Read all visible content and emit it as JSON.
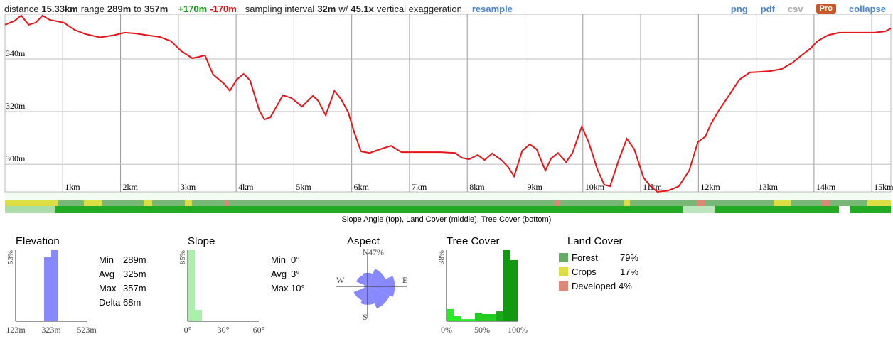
{
  "toolbar": {
    "items": [
      "distance",
      "15.33km",
      "range",
      "289m",
      "to",
      "357m",
      "+170m",
      "-170m",
      "sampling interval",
      "32m",
      "w/",
      "45.1x",
      "vertical exaggeration",
      "resample"
    ],
    "actions": [
      "png",
      "pdf",
      "csv",
      "Pro",
      "collapse"
    ]
  },
  "chart_data": [
    {
      "type": "line",
      "x": [
        0,
        0.16,
        0.28,
        0.41,
        0.53,
        0.65,
        0.77,
        1.02,
        1.2,
        1.39,
        1.64,
        1.88,
        2.07,
        2.25,
        2.5,
        2.68,
        2.87,
        3.05,
        3.24,
        3.36,
        3.46,
        3.6,
        3.79,
        3.89,
        4.01,
        4.13,
        4.24,
        4.4,
        4.49,
        4.59,
        4.81,
        4.96,
        5.14,
        5.33,
        5.42,
        5.55,
        5.7,
        5.82,
        5.94,
        6.04,
        6.16,
        6.31,
        6.49,
        6.68,
        6.86,
        7.17,
        7.54,
        7.79,
        7.91,
        8.03,
        8.18,
        8.3,
        8.43,
        8.59,
        8.71,
        8.81,
        8.95,
        9.08,
        9.2,
        9.35,
        9.45,
        9.57,
        9.71,
        9.82,
        9.98,
        10.1,
        10.25,
        10.37,
        10.47,
        10.62,
        10.76,
        10.89,
        11.05,
        11.17,
        11.29,
        11.48,
        11.66,
        11.84,
        11.99,
        12.12,
        12.21,
        12.34,
        12.52,
        12.71,
        12.89,
        13.07,
        13.25,
        13.44,
        13.63,
        13.75,
        13.94,
        14.06,
        14.24,
        14.43,
        14.68,
        15.04,
        15.23,
        15.33
      ],
      "series": [
        {
          "color": "#e8141a",
          "values": [
            353.0,
            354.4,
            356.5,
            353.0,
            353.8,
            356.5,
            354.9,
            353.8,
            351.1,
            349.5,
            348.2,
            349.0,
            350.0,
            349.7,
            348.9,
            348.4,
            346.8,
            343.0,
            340.3,
            340.8,
            341.4,
            334.1,
            330.6,
            327.9,
            332.2,
            334.3,
            331.9,
            320.5,
            317.0,
            317.8,
            326.2,
            325.1,
            321.9,
            326.0,
            324.1,
            318.6,
            327.9,
            324.6,
            319.7,
            312.4,
            304.9,
            304.3,
            305.7,
            307.0,
            304.6,
            304.6,
            304.6,
            304.3,
            302.4,
            301.9,
            303.5,
            301.6,
            304.1,
            301.6,
            298.9,
            295.4,
            305.1,
            307.6,
            305.7,
            297.6,
            302.2,
            304.3,
            300.8,
            304.3,
            314.3,
            308.4,
            298.1,
            292.2,
            291.6,
            301.6,
            309.7,
            305.7,
            294.9,
            291.6,
            289.5,
            290.0,
            291.6,
            297.6,
            308.4,
            310.5,
            315.1,
            320.0,
            325.9,
            332.2,
            334.9,
            335.1,
            335.4,
            336.2,
            338.6,
            340.8,
            344.0,
            346.8,
            349.0,
            350.0,
            350.0,
            350.0,
            350.5,
            351.6
          ]
        }
      ],
      "xlim": [
        0,
        15.33
      ],
      "ylim": [
        289.5,
        357
      ],
      "xticks": [
        {
          "value": 1,
          "label": "1km"
        },
        {
          "value": 2,
          "label": "2km"
        },
        {
          "value": 3,
          "label": "3km"
        },
        {
          "value": 4,
          "label": "4km"
        },
        {
          "value": 5,
          "label": "5km"
        },
        {
          "value": 6,
          "label": "6km"
        },
        {
          "value": 7,
          "label": "7km"
        },
        {
          "value": 8,
          "label": "8km"
        },
        {
          "value": 9,
          "label": "9km"
        },
        {
          "value": 10,
          "label": "10km"
        },
        {
          "value": 11,
          "label": "11km"
        },
        {
          "value": 12,
          "label": "12km"
        },
        {
          "value": 13,
          "label": "13km"
        },
        {
          "value": 14,
          "label": "14km"
        },
        {
          "value": 15,
          "label": "15km"
        }
      ],
      "yticks": [
        {
          "value": 300,
          "label": "300m"
        },
        {
          "value": 320,
          "label": "320m"
        },
        {
          "value": 340,
          "label": "340m"
        }
      ],
      "grid": true
    },
    {
      "type": "histogram",
      "title": "Elevation",
      "bins": [
        283,
        323,
        363
      ],
      "values": [
        47.7,
        53
      ],
      "color": "#8888ff",
      "xlim": [
        123,
        523
      ],
      "xticks": [
        {
          "value": 123,
          "label": "123m"
        },
        {
          "value": 323,
          "label": "323m"
        },
        {
          "value": 523,
          "label": "523m"
        }
      ],
      "ylim": [
        0,
        53
      ],
      "yticks": [
        {
          "value": 53,
          "label": "53%"
        }
      ],
      "stats": [
        [
          "Min",
          "289m"
        ],
        [
          "Avg",
          "325m"
        ],
        [
          "Max",
          "357m"
        ],
        [
          "Delta",
          "68m"
        ]
      ]
    },
    {
      "type": "histogram",
      "title": "Slope",
      "bins": [
        0,
        6,
        12
      ],
      "values": [
        85,
        13.6
      ],
      "color": "#aaf0aa",
      "xlim": [
        0,
        60
      ],
      "xticks": [
        {
          "value": 0,
          "label": "0°"
        },
        {
          "value": 30,
          "label": "30°"
        },
        {
          "value": 60,
          "label": "60°"
        }
      ],
      "ylim": [
        0,
        85
      ],
      "yticks": [
        {
          "value": 85,
          "label": "85%"
        }
      ],
      "stats": [
        [
          "Min",
          "0°"
        ],
        [
          "Avg",
          "3°"
        ],
        [
          "Max",
          "10°"
        ]
      ]
    },
    {
      "type": "rose",
      "title": "Aspect",
      "values": [
        20,
        28,
        40,
        35,
        27,
        22,
        5,
        18
      ],
      "color": "#8888ff",
      "rlim": [
        0,
        47
      ],
      "rticks": [
        {
          "value": 47,
          "label": "47%"
        }
      ],
      "directions": [
        "N",
        "E",
        "S",
        "W"
      ]
    },
    {
      "type": "histogram",
      "title": "Tree Cover",
      "bins": [
        0,
        10,
        20,
        30,
        40,
        50,
        60,
        70,
        80,
        90,
        100
      ],
      "values": [
        6.5,
        2.7,
        1.1,
        1.1,
        4.6,
        3.8,
        3.8,
        5.3,
        38,
        32.7
      ],
      "colors": [
        "#22ee22",
        "#22ee22",
        "#22ee22",
        "#22ee22",
        "#22cc22",
        "#22cc22",
        "#22cc22",
        "#1aaa1a",
        "#119911",
        "#119911"
      ],
      "xlim": [
        0,
        100
      ],
      "xticks": [
        {
          "value": 0,
          "label": "0%"
        },
        {
          "value": 50,
          "label": "50%"
        },
        {
          "value": 100,
          "label": "100%"
        }
      ],
      "ylim": [
        0,
        38
      ],
      "yticks": [
        {
          "value": 38,
          "label": "38%"
        }
      ]
    },
    {
      "type": "legend",
      "title": "Land Cover",
      "items": [
        {
          "name": "Forest",
          "label": "79%",
          "value": 79,
          "color": "#66aa66"
        },
        {
          "name": "Crops",
          "label": "17%",
          "value": 17,
          "color": "#dddd44"
        },
        {
          "name": "Developed",
          "label": "4%",
          "value": 4,
          "color": "#dd8877"
        }
      ]
    }
  ],
  "strips": {
    "caption": "Slope Angle (top), Land Cover (middle), Tree Cover (bottom)"
  }
}
